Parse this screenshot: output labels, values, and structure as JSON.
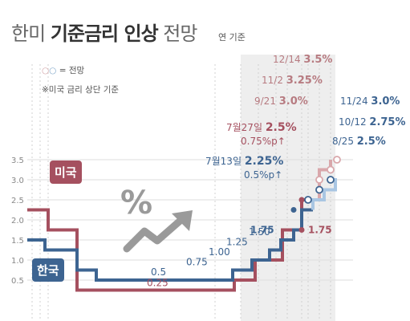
{
  "title": {
    "light": "한미",
    "bold": "기준금리 인상",
    "tail": "전망",
    "unit": "연 기준"
  },
  "legend": {
    "circle1": "○",
    "circle2": "○",
    "text": "= 전망"
  },
  "note": "※미국 금리 상단 기준",
  "series_tags": {
    "us": "미국",
    "korea": "한국"
  },
  "colors": {
    "us": "#a5505f",
    "korea": "#3d6491",
    "us_forecast": "#d9a7ab",
    "korea_forecast": "#a9c6e3",
    "grid": "#dddddd",
    "band": "#eeeeee"
  },
  "icon": "percent-trend-up-icon",
  "chart_data": {
    "type": "line",
    "step": true,
    "ylim": [
      0,
      3.5
    ],
    "yticks": [
      "3.5",
      "3.0",
      "2.5",
      "2.0",
      "1.5",
      "1.0",
      "0.5"
    ],
    "series": [
      {
        "name": "미국",
        "y": [
          2.25,
          1.75,
          0.25,
          0.25,
          0.5,
          1.0,
          1.75,
          2.5,
          3.0,
          3.25,
          3.5
        ],
        "forecast_from": 8
      },
      {
        "name": "한국",
        "y": [
          1.5,
          1.25,
          0.75,
          0.5,
          0.5,
          0.75,
          1.0,
          1.25,
          1.5,
          1.75,
          2.25,
          2.5,
          2.75,
          3.0
        ],
        "forecast_from": 11
      }
    ],
    "labels": {
      "kr_050": "0.5",
      "us_025": "0.25",
      "kr_075": "0.75",
      "kr_100": "1.00",
      "kr_125": "1.25",
      "kr_150": "1.50",
      "kr_175": "1.75",
      "us_175": "1.75",
      "kr_0713": "7월13일",
      "kr_0713_val": "2.25%",
      "kr_0713_sub": "0.5%p↑",
      "us_0727": "7월27일",
      "us_0727_val": "2.5%",
      "us_0727_sub": "0.75%p↑",
      "kr_0825": "8/25",
      "kr_0825_val": "2.5%",
      "kr_1012": "10/12",
      "kr_1012_val": "2.75%",
      "kr_1124": "11/24",
      "kr_1124_val": "3.0%",
      "us_0921": "9/21",
      "us_0921_val": "3.0%",
      "us_1102": "11/2",
      "us_1102_val": "3.25%",
      "us_1214": "12/14",
      "us_1214_val": "3.5%"
    }
  }
}
